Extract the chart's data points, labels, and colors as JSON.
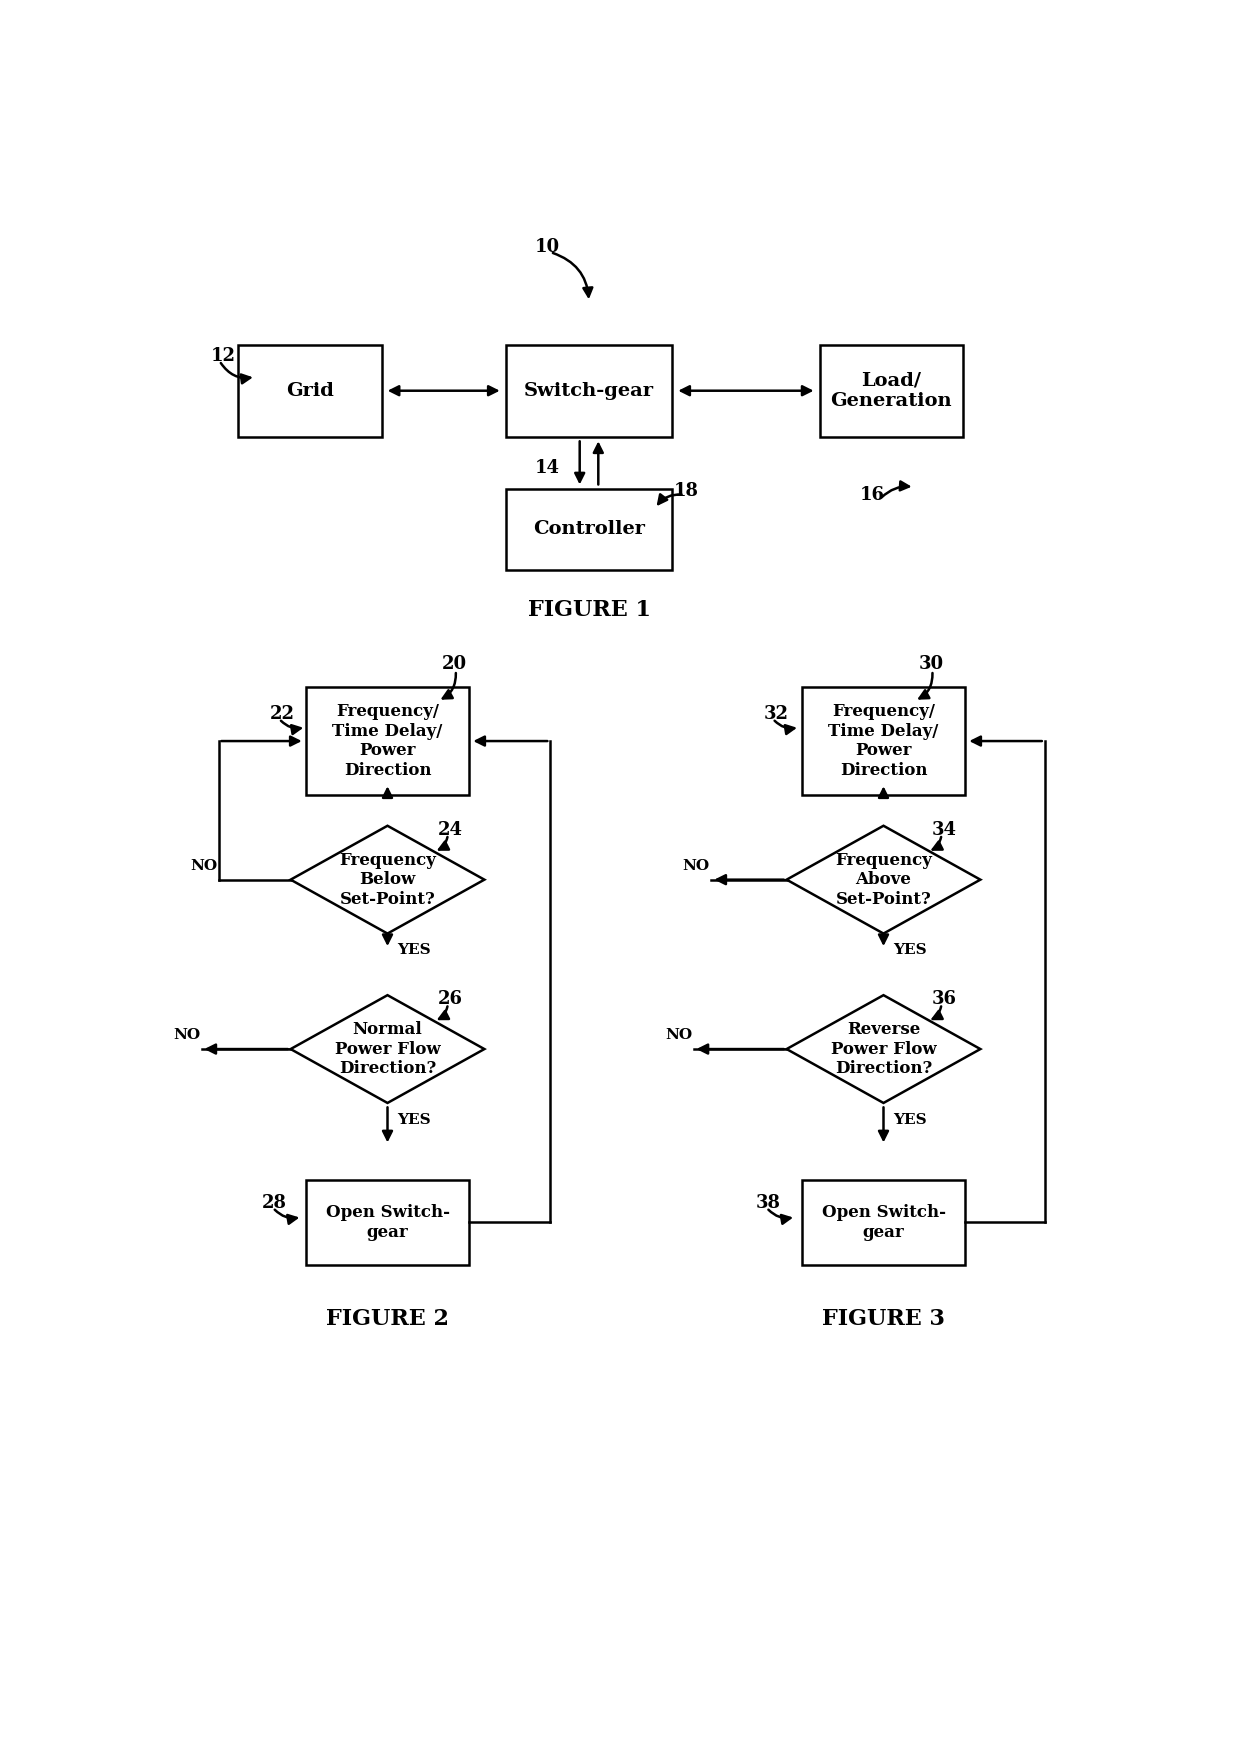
{
  "bg_color": "#ffffff",
  "fig1_title": "FIGURE 1",
  "fig2_title": "FIGURE 2",
  "fig3_title": "FIGURE 3",
  "fig1": {
    "grid_label": "Grid",
    "sg_label": "Switch-gear",
    "lg_label": "Load/\nGeneration",
    "ctrl_label": "Controller",
    "lbl_10": "10",
    "lbl_12": "12",
    "lbl_14": "14",
    "lbl_16": "16",
    "lbl_18": "18"
  },
  "fig2": {
    "box1_label": "Frequency/\nTime Delay/\nPower\nDirection",
    "d1_label": "Frequency\nBelow\nSet-Point?",
    "d2_label": "Normal\nPower Flow\nDirection?",
    "box2_label": "Open Switch-\ngear",
    "lbl_20": "20",
    "lbl_22": "22",
    "lbl_24": "24",
    "lbl_26": "26",
    "lbl_28": "28",
    "yes": "YES",
    "no": "NO"
  },
  "fig3": {
    "box1_label": "Frequency/\nTime Delay/\nPower\nDirection",
    "d1_label": "Frequency\nAbove\nSet-Point?",
    "d2_label": "Reverse\nPower Flow\nDirection?",
    "box2_label": "Open Switch-\ngear",
    "lbl_30": "30",
    "lbl_32": "32",
    "lbl_34": "34",
    "lbl_36": "36",
    "lbl_38": "38",
    "yes": "YES",
    "no": "NO"
  }
}
